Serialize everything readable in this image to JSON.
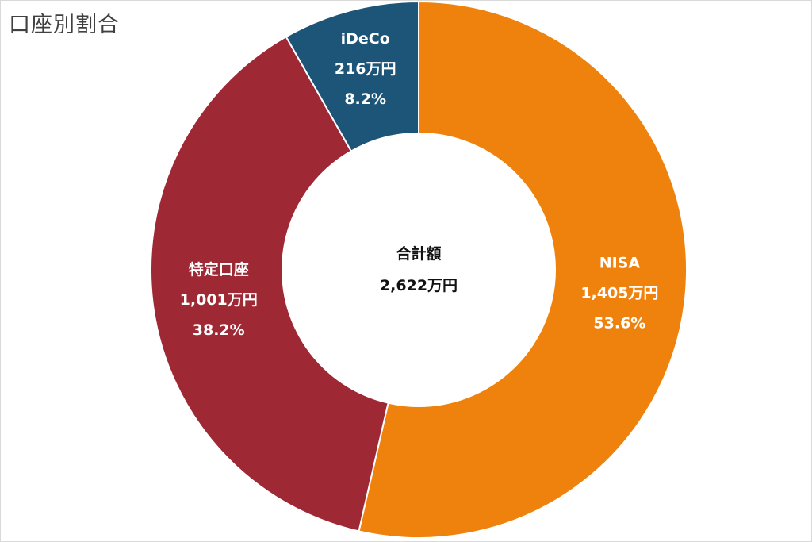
{
  "chart_data": {
    "type": "pie",
    "subtype": "donut",
    "title": "口座別割合",
    "center_label": "合計額",
    "center_value": "2,622万円",
    "slices": [
      {
        "name": "NISA",
        "value": 1405,
        "value_label": "1,405万円",
        "percent": 53.6,
        "percent_label": "53.6%",
        "color": "#ef820d",
        "text_color": "#ffffff"
      },
      {
        "name": "特定口座",
        "value": 1001,
        "value_label": "1,001万円",
        "percent": 38.2,
        "percent_label": "38.2%",
        "color": "#9e2834",
        "text_color": "#ffffff"
      },
      {
        "name": "iDeCo",
        "value": 216,
        "value_label": "216万円",
        "percent": 8.2,
        "percent_label": "8.2%",
        "color": "#1c5578",
        "text_color": "#ffffff"
      }
    ],
    "start_angle": "12 o'clock",
    "direction": "clockwise",
    "legend": "none"
  }
}
